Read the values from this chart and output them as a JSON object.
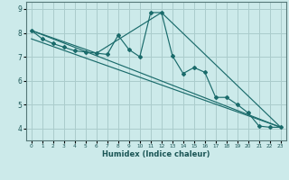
{
  "xlabel": "Humidex (Indice chaleur)",
  "background_color": "#cceaea",
  "grid_color": "#aacccc",
  "line_color": "#1a6b6b",
  "xlim": [
    -0.5,
    23.5
  ],
  "ylim": [
    3.5,
    9.3
  ],
  "yticks": [
    4,
    5,
    6,
    7,
    8,
    9
  ],
  "xticks": [
    0,
    1,
    2,
    3,
    4,
    5,
    6,
    7,
    8,
    9,
    10,
    11,
    12,
    13,
    14,
    15,
    16,
    17,
    18,
    19,
    20,
    21,
    22,
    23
  ],
  "series1_x": [
    0,
    1,
    2,
    3,
    4,
    5,
    6,
    7,
    8,
    9,
    10,
    11,
    12,
    13,
    14,
    15,
    16,
    17,
    18,
    19,
    20,
    21,
    22,
    23
  ],
  "series1_y": [
    8.1,
    7.75,
    7.55,
    7.4,
    7.25,
    7.2,
    7.15,
    7.1,
    7.9,
    7.3,
    7.0,
    8.85,
    8.85,
    7.05,
    6.3,
    6.55,
    6.35,
    5.3,
    5.3,
    5.0,
    4.65,
    4.1,
    4.05,
    4.05
  ],
  "series2_x": [
    0,
    6,
    12,
    23
  ],
  "series2_y": [
    8.1,
    7.15,
    8.85,
    4.05
  ],
  "series3_x": [
    0,
    23
  ],
  "series3_y": [
    8.1,
    4.05
  ],
  "series4_x": [
    0,
    23
  ],
  "series4_y": [
    7.75,
    4.05
  ]
}
